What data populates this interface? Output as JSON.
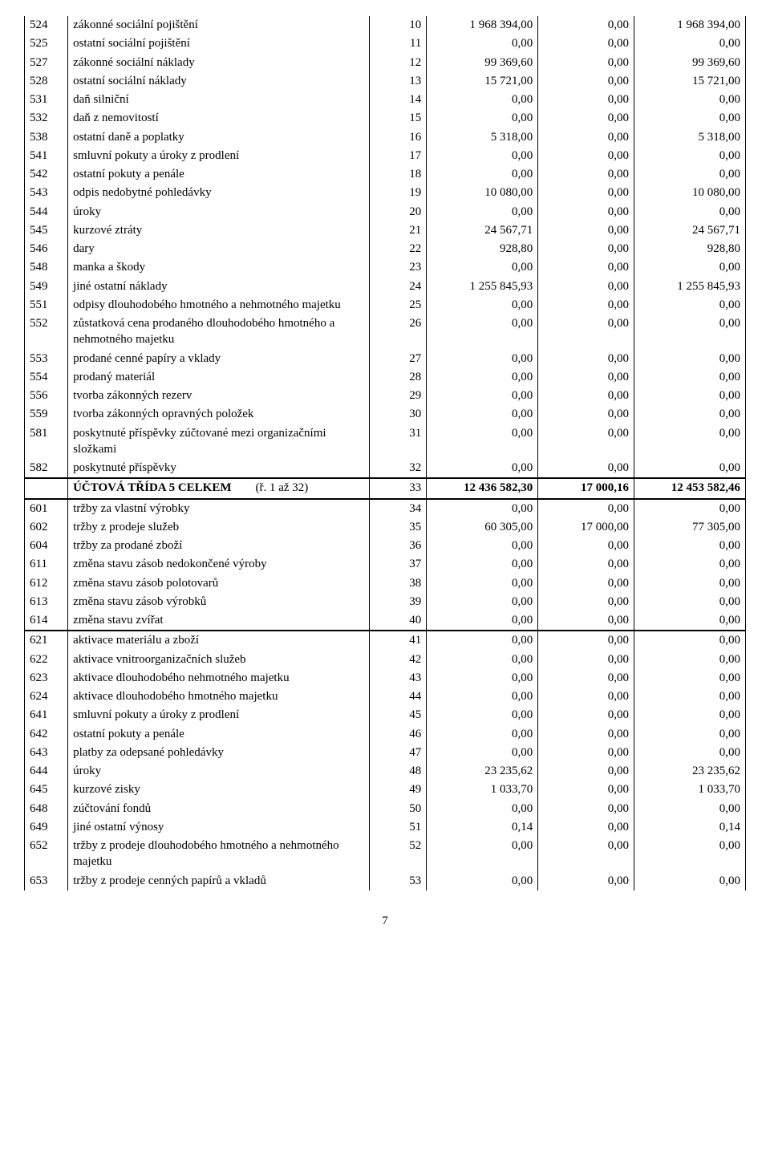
{
  "page_number": "7",
  "sections": [
    {
      "top_border": false,
      "bottom_border": false,
      "rows": [
        {
          "c0": "524",
          "c1": "zákonné sociální pojištění",
          "c2": "10",
          "c3": "1 968 394,00",
          "c4": "0,00",
          "c5": "1 968 394,00"
        },
        {
          "c0": "525",
          "c1": "ostatní sociální pojištění",
          "c2": "11",
          "c3": "0,00",
          "c4": "0,00",
          "c5": "0,00"
        },
        {
          "c0": "527",
          "c1": "zákonné sociální náklady",
          "c2": "12",
          "c3": "99 369,60",
          "c4": "0,00",
          "c5": "99 369,60"
        },
        {
          "c0": "528",
          "c1": "ostatní sociální náklady",
          "c2": "13",
          "c3": "15 721,00",
          "c4": "0,00",
          "c5": "15 721,00"
        },
        {
          "c0": "531",
          "c1": "daň silniční",
          "c2": "14",
          "c3": "0,00",
          "c4": "0,00",
          "c5": "0,00"
        },
        {
          "c0": "532",
          "c1": "daň z nemovitostí",
          "c2": "15",
          "c3": "0,00",
          "c4": "0,00",
          "c5": "0,00"
        },
        {
          "c0": "538",
          "c1": "ostatní daně a poplatky",
          "c2": "16",
          "c3": "5 318,00",
          "c4": "0,00",
          "c5": "5 318,00"
        },
        {
          "c0": "541",
          "c1": "smluvní pokuty a úroky z prodlení",
          "c2": "17",
          "c3": "0,00",
          "c4": "0,00",
          "c5": "0,00"
        },
        {
          "c0": "542",
          "c1": "ostatní pokuty a penále",
          "c2": "18",
          "c3": "0,00",
          "c4": "0,00",
          "c5": "0,00"
        },
        {
          "c0": "543",
          "c1": "odpis nedobytné pohledávky",
          "c2": "19",
          "c3": "10 080,00",
          "c4": "0,00",
          "c5": "10 080,00"
        },
        {
          "c0": "544",
          "c1": "úroky",
          "c2": "20",
          "c3": "0,00",
          "c4": "0,00",
          "c5": "0,00"
        },
        {
          "c0": "545",
          "c1": "kurzové ztráty",
          "c2": "21",
          "c3": "24 567,71",
          "c4": "0,00",
          "c5": "24 567,71"
        },
        {
          "c0": "546",
          "c1": "dary",
          "c2": "22",
          "c3": "928,80",
          "c4": "0,00",
          "c5": "928,80"
        },
        {
          "c0": "548",
          "c1": "manka a škody",
          "c2": "23",
          "c3": "0,00",
          "c4": "0,00",
          "c5": "0,00"
        },
        {
          "c0": "549",
          "c1": "jiné ostatní náklady",
          "c2": "24",
          "c3": "1 255 845,93",
          "c4": "0,00",
          "c5": "1 255 845,93"
        },
        {
          "c0": "551",
          "c1": "odpisy dlouhodobého hmotného a nehmotného majetku",
          "c2": "25",
          "c3": "0,00",
          "c4": "0,00",
          "c5": "0,00"
        },
        {
          "c0": "552",
          "c1": "zůstatková cena prodaného dlouhodobého hmotného a nehmotného majetku",
          "c2": "26",
          "c3": "0,00",
          "c4": "0,00",
          "c5": "0,00"
        },
        {
          "c0": "553",
          "c1": "prodané cenné papíry a vklady",
          "c2": "27",
          "c3": "0,00",
          "c4": "0,00",
          "c5": "0,00"
        },
        {
          "c0": "554",
          "c1": "prodaný materiál",
          "c2": "28",
          "c3": "0,00",
          "c4": "0,00",
          "c5": "0,00"
        },
        {
          "c0": "556",
          "c1": "tvorba zákonných rezerv",
          "c2": "29",
          "c3": "0,00",
          "c4": "0,00",
          "c5": "0,00"
        },
        {
          "c0": "559",
          "c1": "tvorba zákonných opravných položek",
          "c2": "30",
          "c3": "0,00",
          "c4": "0,00",
          "c5": "0,00"
        },
        {
          "c0": "581",
          "c1": "poskytnuté příspěvky zúčtované mezi organizačními složkami",
          "c2": "31",
          "c3": "0,00",
          "c4": "0,00",
          "c5": "0,00"
        },
        {
          "c0": "582",
          "c1": "poskytnuté příspěvky",
          "c2": "32",
          "c3": "0,00",
          "c4": "0,00",
          "c5": "0,00"
        }
      ]
    },
    {
      "top_border": false,
      "bottom_border": true,
      "rows": [
        {
          "c0": "",
          "c1": "<b>ÚČTOVÁ TŘÍDA 5 CELKEM</b>&nbsp;&nbsp;&nbsp;&nbsp;&nbsp;&nbsp;&nbsp;&nbsp;(ř. 1 až 32)",
          "c2": "33",
          "c3": "<b>12 436 582,30</b>",
          "c4": "<b>17 000,16</b>",
          "c5": "<b>12 453 582,46</b>",
          "html": true
        }
      ]
    },
    {
      "top_border": false,
      "bottom_border": true,
      "rows": [
        {
          "c0": "601",
          "c1": "tržby za vlastní výrobky",
          "c2": "34",
          "c3": "0,00",
          "c4": "0,00",
          "c5": "0,00"
        },
        {
          "c0": "602",
          "c1": "tržby z prodeje služeb",
          "c2": "35",
          "c3": "60 305,00",
          "c4": "17 000,00",
          "c5": "77 305,00"
        },
        {
          "c0": "604",
          "c1": "tržby za prodané zboží",
          "c2": "36",
          "c3": "0,00",
          "c4": "0,00",
          "c5": "0,00"
        },
        {
          "c0": "611",
          "c1": "změna stavu zásob nedokončené výroby",
          "c2": "37",
          "c3": "0,00",
          "c4": "0,00",
          "c5": "0,00"
        },
        {
          "c0": "612",
          "c1": "změna stavu zásob polotovarů",
          "c2": "38",
          "c3": "0,00",
          "c4": "0,00",
          "c5": "0,00"
        },
        {
          "c0": "613",
          "c1": "změna stavu zásob výrobků",
          "c2": "39",
          "c3": "0,00",
          "c4": "0,00",
          "c5": "0,00"
        },
        {
          "c0": "614",
          "c1": "změna stavu zvířat",
          "c2": "40",
          "c3": "0,00",
          "c4": "0,00",
          "c5": "0,00"
        }
      ]
    },
    {
      "top_border": false,
      "bottom_border": false,
      "rows": [
        {
          "c0": "621",
          "c1": "aktivace materiálu a zboží",
          "c2": "41",
          "c3": "0,00",
          "c4": "0,00",
          "c5": "0,00"
        },
        {
          "c0": "622",
          "c1": "aktivace vnitroorganizačních služeb",
          "c2": "42",
          "c3": "0,00",
          "c4": "0,00",
          "c5": "0,00"
        },
        {
          "c0": "623",
          "c1": "aktivace dlouhodobého nehmotného majetku",
          "c2": "43",
          "c3": "0,00",
          "c4": "0,00",
          "c5": "0,00"
        },
        {
          "c0": "624",
          "c1": "aktivace dlouhodobého hmotného majetku",
          "c2": "44",
          "c3": "0,00",
          "c4": "0,00",
          "c5": "0,00"
        },
        {
          "c0": "641",
          "c1": "smluvní pokuty a úroky z prodlení",
          "c2": "45",
          "c3": "0,00",
          "c4": "0,00",
          "c5": "0,00"
        },
        {
          "c0": "642",
          "c1": "ostatní pokuty a penále",
          "c2": "46",
          "c3": "0,00",
          "c4": "0,00",
          "c5": "0,00"
        },
        {
          "c0": "643",
          "c1": "platby za odepsané pohledávky",
          "c2": "47",
          "c3": "0,00",
          "c4": "0,00",
          "c5": "0,00"
        },
        {
          "c0": "644",
          "c1": "úroky",
          "c2": "48",
          "c3": "23 235,62",
          "c4": "0,00",
          "c5": "23 235,62"
        },
        {
          "c0": "645",
          "c1": "kurzové zisky",
          "c2": "49",
          "c3": "1 033,70",
          "c4": "0,00",
          "c5": "1 033,70"
        },
        {
          "c0": "648",
          "c1": "zúčtování fondů",
          "c2": "50",
          "c3": "0,00",
          "c4": "0,00",
          "c5": "0,00"
        },
        {
          "c0": "649",
          "c1": "jiné ostatní výnosy",
          "c2": "51",
          "c3": "0,14",
          "c4": "0,00",
          "c5": "0,14"
        },
        {
          "c0": "652",
          "c1": "tržby z prodeje dlouhodobého hmotného a nehmotného majetku",
          "c2": "52",
          "c3": "0,00",
          "c4": "0,00",
          "c5": "0,00"
        },
        {
          "c0": "653",
          "c1": "tržby z prodeje cenných papírů a vkladů",
          "c2": "53",
          "c3": "0,00",
          "c4": "0,00",
          "c5": "0,00"
        }
      ]
    }
  ]
}
